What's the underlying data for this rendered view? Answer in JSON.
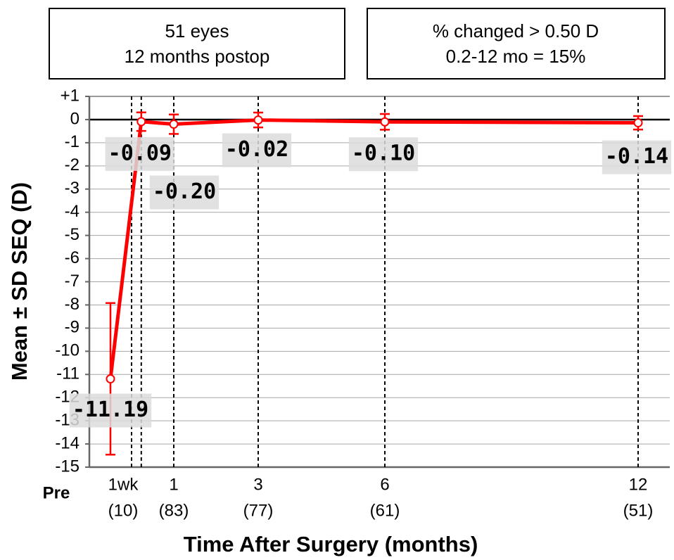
{
  "chart_data": {
    "type": "line",
    "annotations": [
      [
        "51 eyes",
        "12 months postop"
      ],
      [
        "% changed > 0.50 D",
        "0.2-12 mo = 15%"
      ]
    ],
    "y_label": "Mean ± SD SEQ (D)",
    "x_label": "Time After Surgery (months)",
    "categories": [
      "Pre",
      "1wk",
      "1",
      "3",
      "6",
      "12"
    ],
    "n_labels": [
      null,
      "(10)",
      "(83)",
      "(77)",
      "(61)",
      "(51)"
    ],
    "x": [
      -0.5,
      0.23,
      1,
      3,
      6,
      12
    ],
    "values": [
      -11.19,
      -0.09,
      -0.2,
      -0.02,
      -0.1,
      -0.14
    ],
    "value_labels": [
      "-11.19",
      "-0.09",
      "-0.20",
      "-0.02",
      "-0.10",
      "-0.14"
    ],
    "errors": [
      3.27,
      0.4,
      0.42,
      0.32,
      0.34,
      0.29
    ],
    "color": "#ff0000",
    "xlim": [
      -1,
      12.75
    ],
    "ylim": [
      -15,
      1
    ],
    "yticks": [
      {
        "value": 1,
        "label": "+1"
      },
      0,
      -1,
      -2,
      -3,
      -4,
      -5,
      -6,
      -7,
      -8,
      -9,
      -10,
      -11,
      -12,
      -13,
      -14,
      -15
    ],
    "grid": true
  }
}
